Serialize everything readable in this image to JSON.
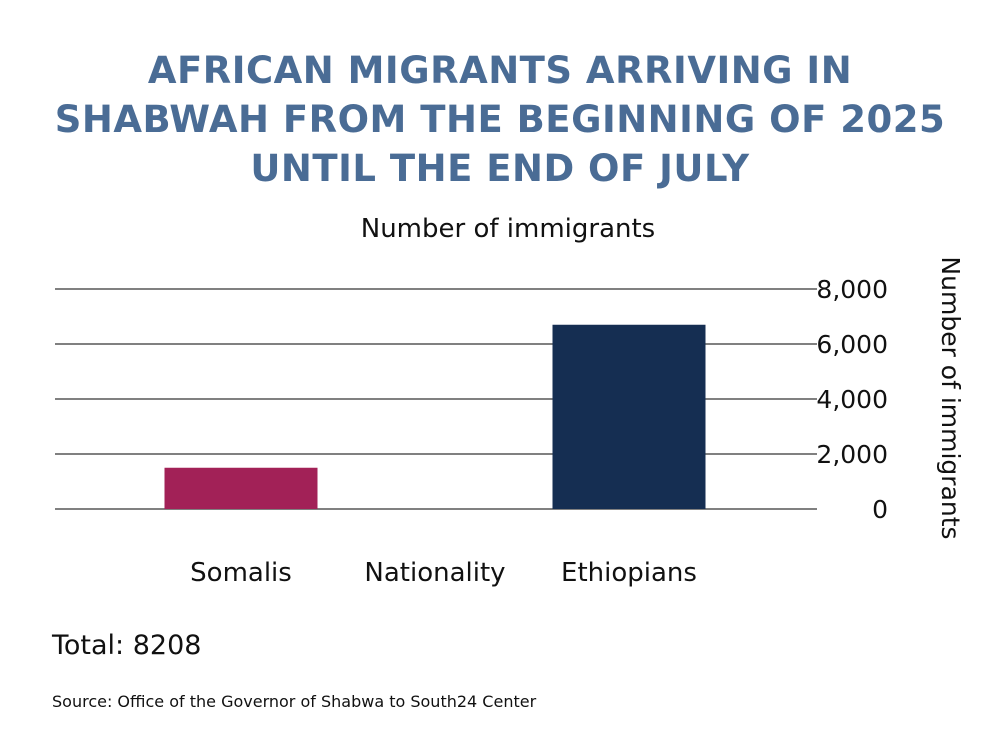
{
  "header": {
    "title": "AFRICAN MIGRANTS ARRIVING IN SHABWAH FROM THE BEGINNING OF 2025 UNTIL THE END OF JULY",
    "subtitle": "Number of immigrants"
  },
  "colors": {
    "title": "#4a6c95",
    "somalis": "#a22157",
    "ethiopians": "#152e52",
    "gridline": "#000000"
  },
  "chart_data": {
    "type": "bar",
    "title": "Number of immigrants",
    "xlabel": "Nationality",
    "ylabel": "Number of immigrants",
    "categories": [
      "Somalis",
      "Nationality",
      "Ethiopians"
    ],
    "values": [
      1500,
      null,
      6700
    ],
    "bar_colors": [
      "#a22157",
      null,
      "#152e52"
    ],
    "ylim": [
      0,
      8000
    ],
    "yticks": [
      0,
      2000,
      4000,
      6000,
      8000
    ],
    "ytick_labels": [
      "0",
      "2,000",
      "4,000",
      "6,000",
      "8,000"
    ],
    "y_axis_position": "right",
    "grid": true,
    "legend": "none"
  },
  "footer": {
    "total": "Total: 8208",
    "source": "Source: Office of the Governor of Shabwa to South24 Center"
  }
}
